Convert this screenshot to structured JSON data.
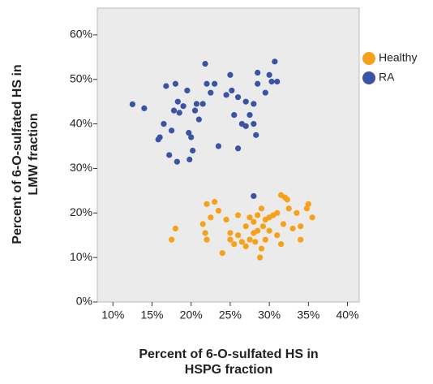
{
  "chart_data": {
    "type": "scatter",
    "xlabel": [
      "Percent of 6-O-sulfated HS in",
      "HSPG fraction"
    ],
    "ylabel": [
      "Percent of 6-O-sulfated HS in",
      "LMW fraction"
    ],
    "xlim": [
      8,
      41.5
    ],
    "ylim": [
      0,
      66
    ],
    "xticks": [
      {
        "value": 10,
        "label": "10%"
      },
      {
        "value": 15,
        "label": "15%"
      },
      {
        "value": 20,
        "label": "20%"
      },
      {
        "value": 25,
        "label": "25%"
      },
      {
        "value": 30,
        "label": "30%"
      },
      {
        "value": 35,
        "label": "35%"
      },
      {
        "value": 40,
        "label": "40%"
      }
    ],
    "yticks": [
      {
        "value": 0,
        "label": "0%"
      },
      {
        "value": 10,
        "label": "10%"
      },
      {
        "value": 20,
        "label": "20%"
      },
      {
        "value": 30,
        "label": "30%"
      },
      {
        "value": 40,
        "label": "40%"
      },
      {
        "value": 50,
        "label": "50%"
      },
      {
        "value": 60,
        "label": "60%"
      }
    ],
    "legend": "right",
    "series": [
      {
        "name": "Healthy",
        "color": "#f7a11a",
        "x": [
          17.5,
          18,
          21.5,
          21.8,
          22,
          22,
          22.5,
          23,
          23.5,
          24,
          24.5,
          25,
          25,
          25.5,
          26,
          26,
          26.5,
          27,
          27,
          27.5,
          27.5,
          28,
          28,
          28.2,
          28.5,
          28.5,
          28.8,
          29,
          29,
          29.2,
          29.5,
          29.5,
          30,
          30,
          30.5,
          31,
          31,
          31.5,
          31.5,
          31.8,
          32,
          32.3,
          32.5,
          33,
          33.5,
          34,
          34,
          34.8,
          35,
          35.5
        ],
        "values": [
          14,
          16.5,
          17.5,
          15.5,
          14,
          22,
          19,
          22.5,
          20.5,
          11,
          18.5,
          15.5,
          14,
          13,
          19.5,
          15,
          13.5,
          12.5,
          17,
          14,
          19,
          18,
          15.5,
          13.5,
          16,
          19.5,
          10,
          12,
          21,
          17,
          14,
          18.5,
          19,
          16,
          19.5,
          20,
          15,
          13,
          24,
          17.5,
          23.5,
          23,
          21,
          16.5,
          20,
          17,
          14,
          21,
          22,
          19
        ]
      },
      {
        "name": "RA",
        "color": "#3a53a4",
        "x": [
          12.5,
          14,
          15.8,
          16,
          16.5,
          16.8,
          17.2,
          17.5,
          17.8,
          18,
          18.2,
          18.3,
          18.5,
          19,
          19.5,
          19.7,
          19.8,
          20,
          20.2,
          20.5,
          20.7,
          21,
          21.5,
          21.8,
          22,
          22.5,
          23,
          23.5,
          24.5,
          25,
          25.2,
          25.5,
          26,
          26,
          26.5,
          27,
          27,
          27.5,
          28,
          28,
          28.3,
          28.5,
          28.5,
          28,
          29.5,
          30,
          30.3,
          30.7,
          31
        ],
        "values": [
          44.4,
          43.5,
          36.5,
          37,
          40,
          48.5,
          33,
          38.5,
          43,
          49,
          31.5,
          45,
          42.5,
          44,
          47.5,
          38,
          32,
          37,
          34,
          43,
          44.5,
          41,
          44.5,
          53.5,
          49,
          47,
          49,
          35,
          46.5,
          51,
          47.5,
          42,
          46,
          34.5,
          40,
          39.5,
          45,
          42,
          44.5,
          40,
          37.5,
          49,
          51.5,
          23.8,
          47,
          51,
          49.5,
          54,
          49.5
        ]
      }
    ]
  }
}
